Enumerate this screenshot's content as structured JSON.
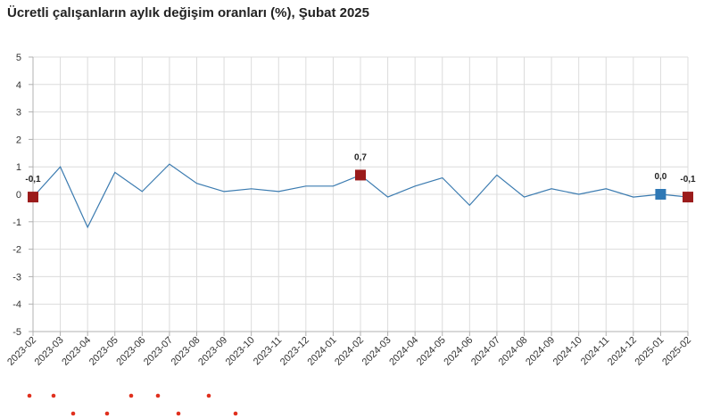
{
  "chart_data": {
    "type": "line",
    "title": "Ücretli çalışanların aylık değişim oranları (%), Şubat 2025",
    "xlabel": "",
    "ylabel": "",
    "ylim": [
      -5,
      5
    ],
    "yticks": [
      5,
      4,
      3,
      2,
      1,
      0,
      -1,
      -2,
      -3,
      -4,
      -5
    ],
    "grid": true,
    "legend": "none",
    "categories": [
      "2023-02",
      "2023-03",
      "2023-04",
      "2023-05",
      "2023-06",
      "2023-07",
      "2023-08",
      "2023-09",
      "2023-10",
      "2023-11",
      "2023-12",
      "2024-01",
      "2024-02",
      "2024-03",
      "2024-04",
      "2024-05",
      "2024-06",
      "2024-07",
      "2024-08",
      "2024-09",
      "2024-10",
      "2024-11",
      "2024-12",
      "2025-01",
      "2025-02"
    ],
    "series": [
      {
        "values": [
          -0.1,
          1.0,
          -1.2,
          0.8,
          0.1,
          1.1,
          0.4,
          0.1,
          0.2,
          0.1,
          0.3,
          0.3,
          0.7,
          -0.1,
          0.3,
          0.6,
          -0.4,
          0.7,
          -0.1,
          0.2,
          0.0,
          0.2,
          -0.1,
          0.0,
          -0.1
        ]
      }
    ],
    "highlighted_points": [
      {
        "category": "2023-02",
        "value": -0.1,
        "label": "-0,1",
        "color": "#9b1b1b"
      },
      {
        "category": "2024-02",
        "value": 0.7,
        "label": "0,7",
        "color": "#9b1b1b"
      },
      {
        "category": "2025-01",
        "value": 0.0,
        "label": "0,0",
        "color": "#2e78b5"
      },
      {
        "category": "2025-02",
        "value": -0.1,
        "label": "-0,1",
        "color": "#9b1b1b"
      }
    ],
    "colors": {
      "line": "#3b7bb0",
      "grid": "#dcdcdc",
      "axis": "#b0b0b0",
      "dots": "#e0301e"
    }
  }
}
